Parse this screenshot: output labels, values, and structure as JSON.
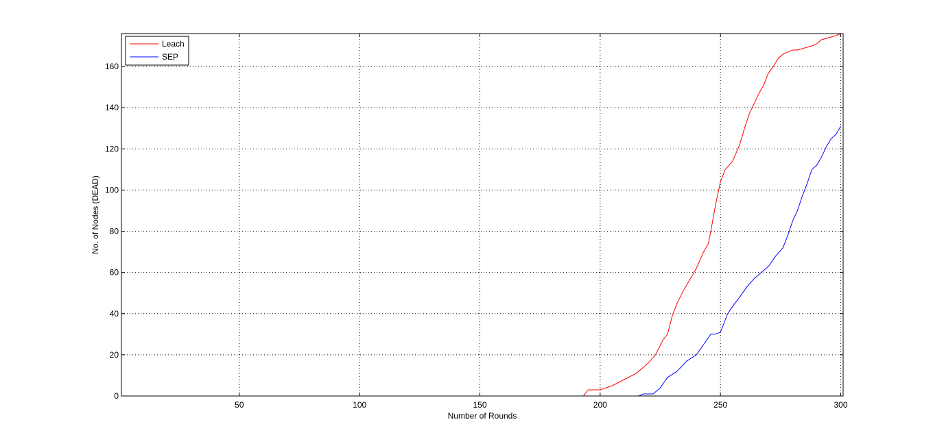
{
  "chart_data": {
    "type": "line",
    "title": "",
    "xlabel": "Number of Rounds",
    "ylabel": "No. of Nodes (DEAD)",
    "xlim": [
      1,
      301
    ],
    "ylim": [
      0,
      176
    ],
    "xticks": [
      50,
      100,
      150,
      200,
      250,
      300
    ],
    "yticks": [
      0,
      20,
      40,
      60,
      80,
      100,
      120,
      140,
      160
    ],
    "grid": true,
    "legend_position": "top-left",
    "series": [
      {
        "name": "Leach",
        "color": "#ff0000",
        "x": [
          1,
          193,
          195,
          200,
          205,
          210,
          215,
          220,
          223,
          226,
          228,
          230,
          232,
          235,
          238,
          240,
          243,
          245,
          246,
          248,
          250,
          252,
          255,
          258,
          260,
          262,
          264,
          266,
          268,
          270,
          272,
          274,
          276,
          278,
          280,
          282,
          285,
          288,
          290,
          292,
          295,
          298,
          300
        ],
        "y": [
          0,
          0,
          3,
          3,
          5,
          8,
          11,
          16,
          20,
          27,
          30,
          39,
          45,
          52,
          58,
          62,
          70,
          74,
          80,
          93,
          104,
          110,
          114,
          122,
          130,
          137,
          142,
          147,
          151,
          157,
          160,
          164,
          166,
          167,
          168,
          168,
          169,
          170,
          171,
          173,
          174,
          175,
          177
        ]
      },
      {
        "name": "SEP",
        "color": "#0000ff",
        "x": [
          1,
          216,
          218,
          222,
          225,
          228,
          232,
          236,
          240,
          243,
          246,
          248,
          250,
          253,
          256,
          258,
          261,
          264,
          267,
          270,
          273,
          276,
          278,
          280,
          282,
          284,
          286,
          288,
          290,
          292,
          294,
          296,
          298,
          300
        ],
        "y": [
          0,
          0,
          1,
          1,
          4,
          9,
          12,
          17,
          20,
          25,
          30,
          30,
          31,
          40,
          45,
          48,
          53,
          57,
          60,
          63,
          68,
          72,
          78,
          85,
          90,
          97,
          103,
          110,
          112,
          116,
          121,
          125,
          127,
          131
        ]
      }
    ]
  }
}
